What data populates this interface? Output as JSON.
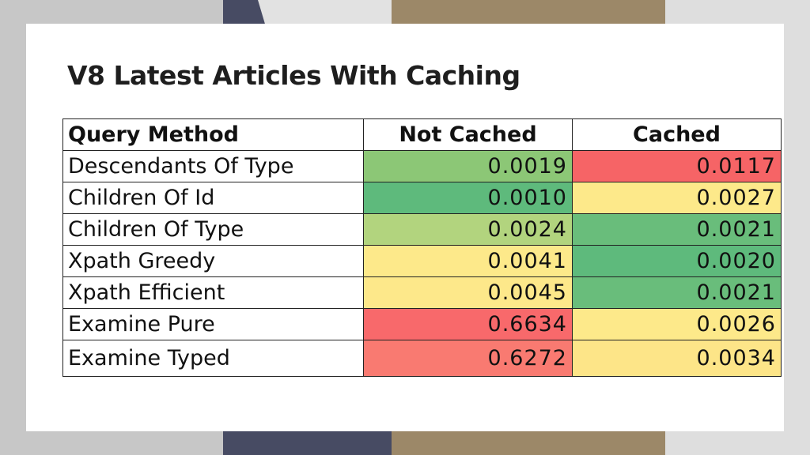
{
  "slide": {
    "title": "V8 Latest Articles With Caching"
  },
  "table": {
    "headers": [
      "Query Method",
      "Not Cached",
      "Cached"
    ],
    "rows": [
      {
        "method": "Descendants Of Type",
        "not_cached": "0.0019",
        "cached": "0.0117",
        "not_cached_color": "#8cc776",
        "cached_color": "#f66466"
      },
      {
        "method": "Children Of Id",
        "not_cached": "0.0010",
        "cached": "0.0027",
        "not_cached_color": "#5eba7c",
        "cached_color": "#fde98a"
      },
      {
        "method": "Children Of Type",
        "not_cached": "0.0024",
        "cached": "0.0021",
        "not_cached_color": "#b2d47e",
        "cached_color": "#69bd7b"
      },
      {
        "method": "Xpath Greedy",
        "not_cached": "0.0041",
        "cached": "0.0020",
        "not_cached_color": "#fde98a",
        "cached_color": "#5eba7c"
      },
      {
        "method": "Xpath Efficient",
        "not_cached": "0.0045",
        "cached": "0.0021",
        "not_cached_color": "#fde88a",
        "cached_color": "#69bd7b"
      },
      {
        "method": "Examine Pure",
        "not_cached": "0.6634",
        "cached": "0.0026",
        "not_cached_color": "#f8696b",
        "cached_color": "#fde98a"
      },
      {
        "method": "Examine Typed",
        "not_cached": "0.6272",
        "cached": "0.0034",
        "not_cached_color": "#f97a71",
        "cached_color": "#fde588"
      }
    ]
  }
}
